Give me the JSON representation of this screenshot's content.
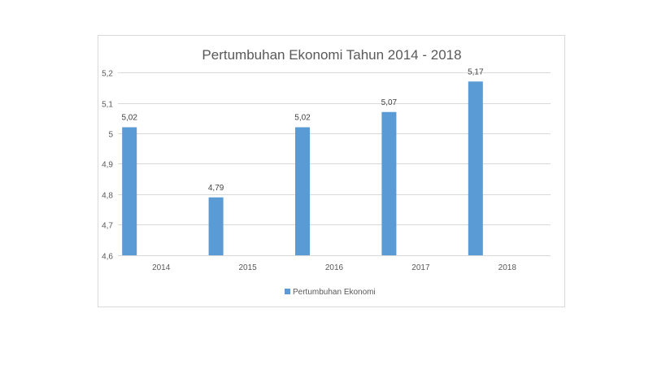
{
  "chart_data": {
    "type": "bar",
    "title": "Pertumbuhan Ekonomi Tahun 2014 - 2018",
    "xlabel": "",
    "ylabel": "",
    "categories": [
      "2014",
      "2015",
      "2016",
      "2017",
      "2018"
    ],
    "series": [
      {
        "name": "Pertumbuhan Ekonomi",
        "values": [
          5.02,
          4.79,
          5.02,
          5.07,
          5.17
        ],
        "data_labels": [
          "5,02",
          "4,79",
          "5,02",
          "5,07",
          "5,17"
        ],
        "color": "#5b9bd5"
      }
    ],
    "ylim": [
      4.6,
      5.2
    ],
    "yticks": [
      4.6,
      4.7,
      4.8,
      4.9,
      5.0,
      5.1,
      5.2
    ],
    "ytick_labels": [
      "4,6",
      "4,7",
      "4,8",
      "4,9",
      "5",
      "5,1",
      "5,2"
    ],
    "grid": true,
    "legend_position": "bottom"
  }
}
